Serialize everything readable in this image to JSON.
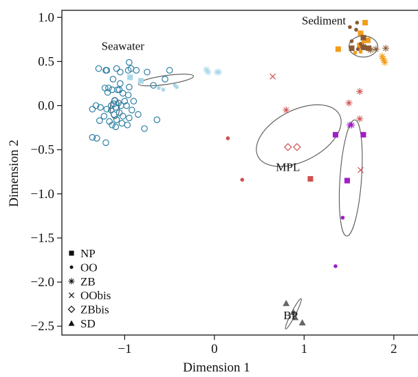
{
  "chart_data": {
    "type": "scatter",
    "xlabel": "Dimension 1",
    "ylabel": "Dimension 2",
    "xlim": [
      -1.7,
      2.3
    ],
    "ylim": [
      -2.6,
      1.08
    ],
    "x_ticks": [
      -1,
      0,
      1,
      2
    ],
    "x_tick_labels": [
      "−1",
      "0",
      "1",
      "2"
    ],
    "y_ticks": [
      1.0,
      0.5,
      0.0,
      -0.5,
      -1.0,
      -1.5,
      -2.0,
      -2.5
    ],
    "y_tick_labels": [
      "1.0",
      "0.5",
      "0.0",
      "−0.5",
      "−1.0",
      "−1.5",
      "−2.0",
      "−2.5"
    ],
    "grid": false,
    "legend_position": "bottom-left",
    "legend": [
      {
        "marker": "square",
        "label": "NP"
      },
      {
        "marker": "circle",
        "label": "OO"
      },
      {
        "marker": "asterisk",
        "label": "ZB"
      },
      {
        "marker": "x",
        "label": "OObis"
      },
      {
        "marker": "diamond",
        "label": "ZBbis"
      },
      {
        "marker": "triangle",
        "label": "SD"
      }
    ],
    "annotations": [
      {
        "text": "Sediment",
        "x": 1.22,
        "y": 0.92
      },
      {
        "text": "Seawater",
        "x": -1.02,
        "y": 0.63
      },
      {
        "text": "MPL",
        "x": 0.82,
        "y": -0.74
      },
      {
        "text": "BP",
        "x": 0.85,
        "y": -2.42
      }
    ],
    "ellipses": [
      {
        "group": "Sediment",
        "cx": 1.66,
        "cy": 0.67,
        "rx": 0.16,
        "ry": 0.12,
        "rotation_deg": 0
      },
      {
        "group": "Seawater",
        "cx": -0.54,
        "cy": 0.29,
        "rx": 0.31,
        "ry": 0.05,
        "rotation_deg": -8
      },
      {
        "group": "Seawater-NP",
        "cx": -1.11,
        "cy": -0.03,
        "rx": 0.05,
        "ry": 0.12,
        "rotation_deg": 0
      },
      {
        "group": "MPL",
        "cx": 0.94,
        "cy": -0.34,
        "rx": 0.51,
        "ry": 0.29,
        "rotation_deg": -27
      },
      {
        "group": "OO-MPL",
        "cx": 1.52,
        "cy": -0.82,
        "rx": 0.12,
        "ry": 0.66,
        "rotation_deg": 4
      },
      {
        "group": "BP",
        "cx": 0.88,
        "cy": -2.36,
        "rx": 0.19,
        "ry": 0.025,
        "rotation_deg": -63
      }
    ],
    "series": [
      {
        "group": "Seawater",
        "marker": "open-circle",
        "color": "#2b7ea4",
        "points": [
          [
            -1.29,
            0.42
          ],
          [
            -1.21,
            0.4
          ],
          [
            -1.09,
            0.42
          ],
          [
            -0.93,
            0.42
          ],
          [
            -1.05,
            0.38
          ],
          [
            -0.96,
            0.4
          ],
          [
            -0.87,
            0.4
          ],
          [
            -0.75,
            0.38
          ],
          [
            -0.5,
            0.4
          ],
          [
            -0.55,
            0.3
          ],
          [
            -0.68,
            0.23
          ],
          [
            -1.13,
            0.3
          ],
          [
            -1.05,
            0.25
          ],
          [
            -0.95,
            0.49
          ],
          [
            -1.06,
            0.18
          ],
          [
            -1.22,
            0.2
          ],
          [
            -1.19,
            0.15
          ],
          [
            -1.18,
            0.2
          ],
          [
            -1.14,
            0.18
          ],
          [
            -1.08,
            0.18
          ],
          [
            -1.02,
            0.14
          ],
          [
            -0.95,
            0.21
          ],
          [
            -0.96,
            0.12
          ],
          [
            -1.11,
            0.06
          ],
          [
            -1.07,
            0.03
          ],
          [
            -1.12,
            0.02
          ],
          [
            -1.15,
            0.0
          ],
          [
            -1.04,
            0.0
          ],
          [
            -0.98,
            0.0
          ],
          [
            -0.92,
            -0.05
          ],
          [
            -0.9,
            0.05
          ],
          [
            -1.2,
            -0.04
          ],
          [
            -1.15,
            -0.05
          ],
          [
            -1.12,
            -0.1
          ],
          [
            -1.06,
            -0.08
          ],
          [
            -1.02,
            -0.12
          ],
          [
            -1.09,
            -0.16
          ],
          [
            -0.95,
            -0.14
          ],
          [
            -0.85,
            -0.1
          ],
          [
            -1.32,
            0.0
          ],
          [
            -1.36,
            -0.04
          ],
          [
            -1.27,
            -0.02
          ],
          [
            -1.23,
            -0.12
          ],
          [
            -1.14,
            -0.22
          ],
          [
            -1.1,
            -0.24
          ],
          [
            -0.97,
            -0.22
          ],
          [
            -0.78,
            -0.26
          ],
          [
            -0.64,
            -0.16
          ],
          [
            -1.28,
            -0.17
          ],
          [
            -1.17,
            -0.18
          ],
          [
            -1.03,
            -0.2
          ],
          [
            -1.31,
            -0.37
          ],
          [
            -1.36,
            -0.36
          ],
          [
            -1.21,
            -0.42
          ],
          [
            -1.2,
            0.4
          ],
          [
            -1.0,
            0.05
          ],
          [
            -1.1,
            -0.02
          ]
        ]
      },
      {
        "group": "Seawater",
        "marker": "square",
        "color": "#a8d8e8",
        "points": [
          [
            -0.94,
            0.32
          ],
          [
            -0.82,
            0.28
          ]
        ]
      },
      {
        "group": "Seawater",
        "marker": "dot",
        "color": "#a8d8e8",
        "points": [
          [
            -0.62,
            0.2
          ],
          [
            -0.57,
            0.18
          ],
          [
            -0.44,
            0.23
          ],
          [
            -0.42,
            0.21
          ]
        ]
      },
      {
        "group": "Seawater",
        "marker": "asterisk",
        "color": "#a8d8e8",
        "points": [
          [
            -0.09,
            0.41
          ],
          [
            -0.07,
            0.38
          ],
          [
            0.03,
            0.38
          ],
          [
            0.05,
            0.38
          ]
        ]
      },
      {
        "group": "Sediment",
        "marker": "square",
        "color": "#f29c1a",
        "points": [
          [
            1.38,
            0.64
          ],
          [
            1.63,
            0.82
          ],
          [
            1.68,
            0.94
          ],
          [
            1.62,
            0.68
          ],
          [
            1.71,
            0.74
          ]
        ]
      },
      {
        "group": "Sediment",
        "marker": "square",
        "color": "#8b5a34",
        "points": [
          [
            1.66,
            0.77
          ],
          [
            1.53,
            0.65
          ],
          [
            1.72,
            0.65
          ],
          [
            1.66,
            0.66
          ]
        ]
      },
      {
        "group": "Sediment",
        "marker": "dot",
        "color": "#8b5a34",
        "points": [
          [
            1.51,
            0.89
          ],
          [
            1.59,
            0.94
          ],
          [
            1.58,
            0.86
          ],
          [
            1.53,
            0.73
          ],
          [
            1.6,
            0.64
          ],
          [
            1.69,
            0.66
          ],
          [
            1.63,
            0.7
          ]
        ]
      },
      {
        "group": "Sediment",
        "marker": "dot",
        "color": "#f29c1a",
        "points": [
          [
            1.57,
            0.6
          ],
          [
            1.66,
            0.72
          ],
          [
            1.63,
            0.61
          ]
        ]
      },
      {
        "group": "Sediment",
        "marker": "asterisk",
        "color": "#8b5a34",
        "points": [
          [
            1.74,
            0.63
          ],
          [
            1.8,
            0.64
          ],
          [
            1.91,
            0.65
          ],
          [
            1.66,
            0.67
          ]
        ]
      },
      {
        "group": "Sediment",
        "marker": "asterisk",
        "color": "#f29c1a",
        "points": [
          [
            1.87,
            0.56
          ],
          [
            1.89,
            0.51
          ],
          [
            1.88,
            0.53
          ],
          [
            1.9,
            0.49
          ]
        ]
      },
      {
        "group": "MPL",
        "marker": "asterisk",
        "color": "#d05050",
        "points": [
          [
            0.8,
            -0.05
          ],
          [
            1.62,
            0.16
          ],
          [
            1.5,
            0.03
          ],
          [
            1.62,
            -0.15
          ]
        ]
      },
      {
        "group": "MPL",
        "marker": "x",
        "color": "#d05050",
        "points": [
          [
            0.65,
            0.33
          ],
          [
            1.63,
            -0.73
          ]
        ]
      },
      {
        "group": "MPL",
        "marker": "open-diamond",
        "color": "#d05050",
        "points": [
          [
            0.82,
            -0.47
          ],
          [
            0.92,
            -0.47
          ]
        ]
      },
      {
        "group": "MPL",
        "marker": "dot",
        "color": "#d05050",
        "points": [
          [
            0.15,
            -0.37
          ],
          [
            0.31,
            -0.84
          ]
        ]
      },
      {
        "group": "MPL",
        "marker": "square",
        "color": "#d05050",
        "points": [
          [
            1.07,
            -0.83
          ]
        ]
      },
      {
        "group": "OO",
        "marker": "square",
        "color": "#a11ec8",
        "points": [
          [
            1.35,
            -0.33
          ],
          [
            1.66,
            -0.33
          ],
          [
            1.48,
            -0.85
          ]
        ]
      },
      {
        "group": "OO",
        "marker": "asterisk",
        "color": "#a11ec8",
        "points": [
          [
            1.53,
            -0.22
          ],
          [
            1.51,
            -0.22
          ]
        ]
      },
      {
        "group": "OO",
        "marker": "dot",
        "color": "#a11ec8",
        "points": [
          [
            1.43,
            -1.27
          ],
          [
            1.35,
            -1.82
          ]
        ]
      },
      {
        "group": "BP",
        "marker": "triangle",
        "color": "#666666",
        "points": [
          [
            0.8,
            -2.24
          ],
          [
            0.88,
            -2.34
          ],
          [
            0.9,
            -2.4
          ],
          [
            0.98,
            -2.46
          ]
        ]
      }
    ]
  }
}
